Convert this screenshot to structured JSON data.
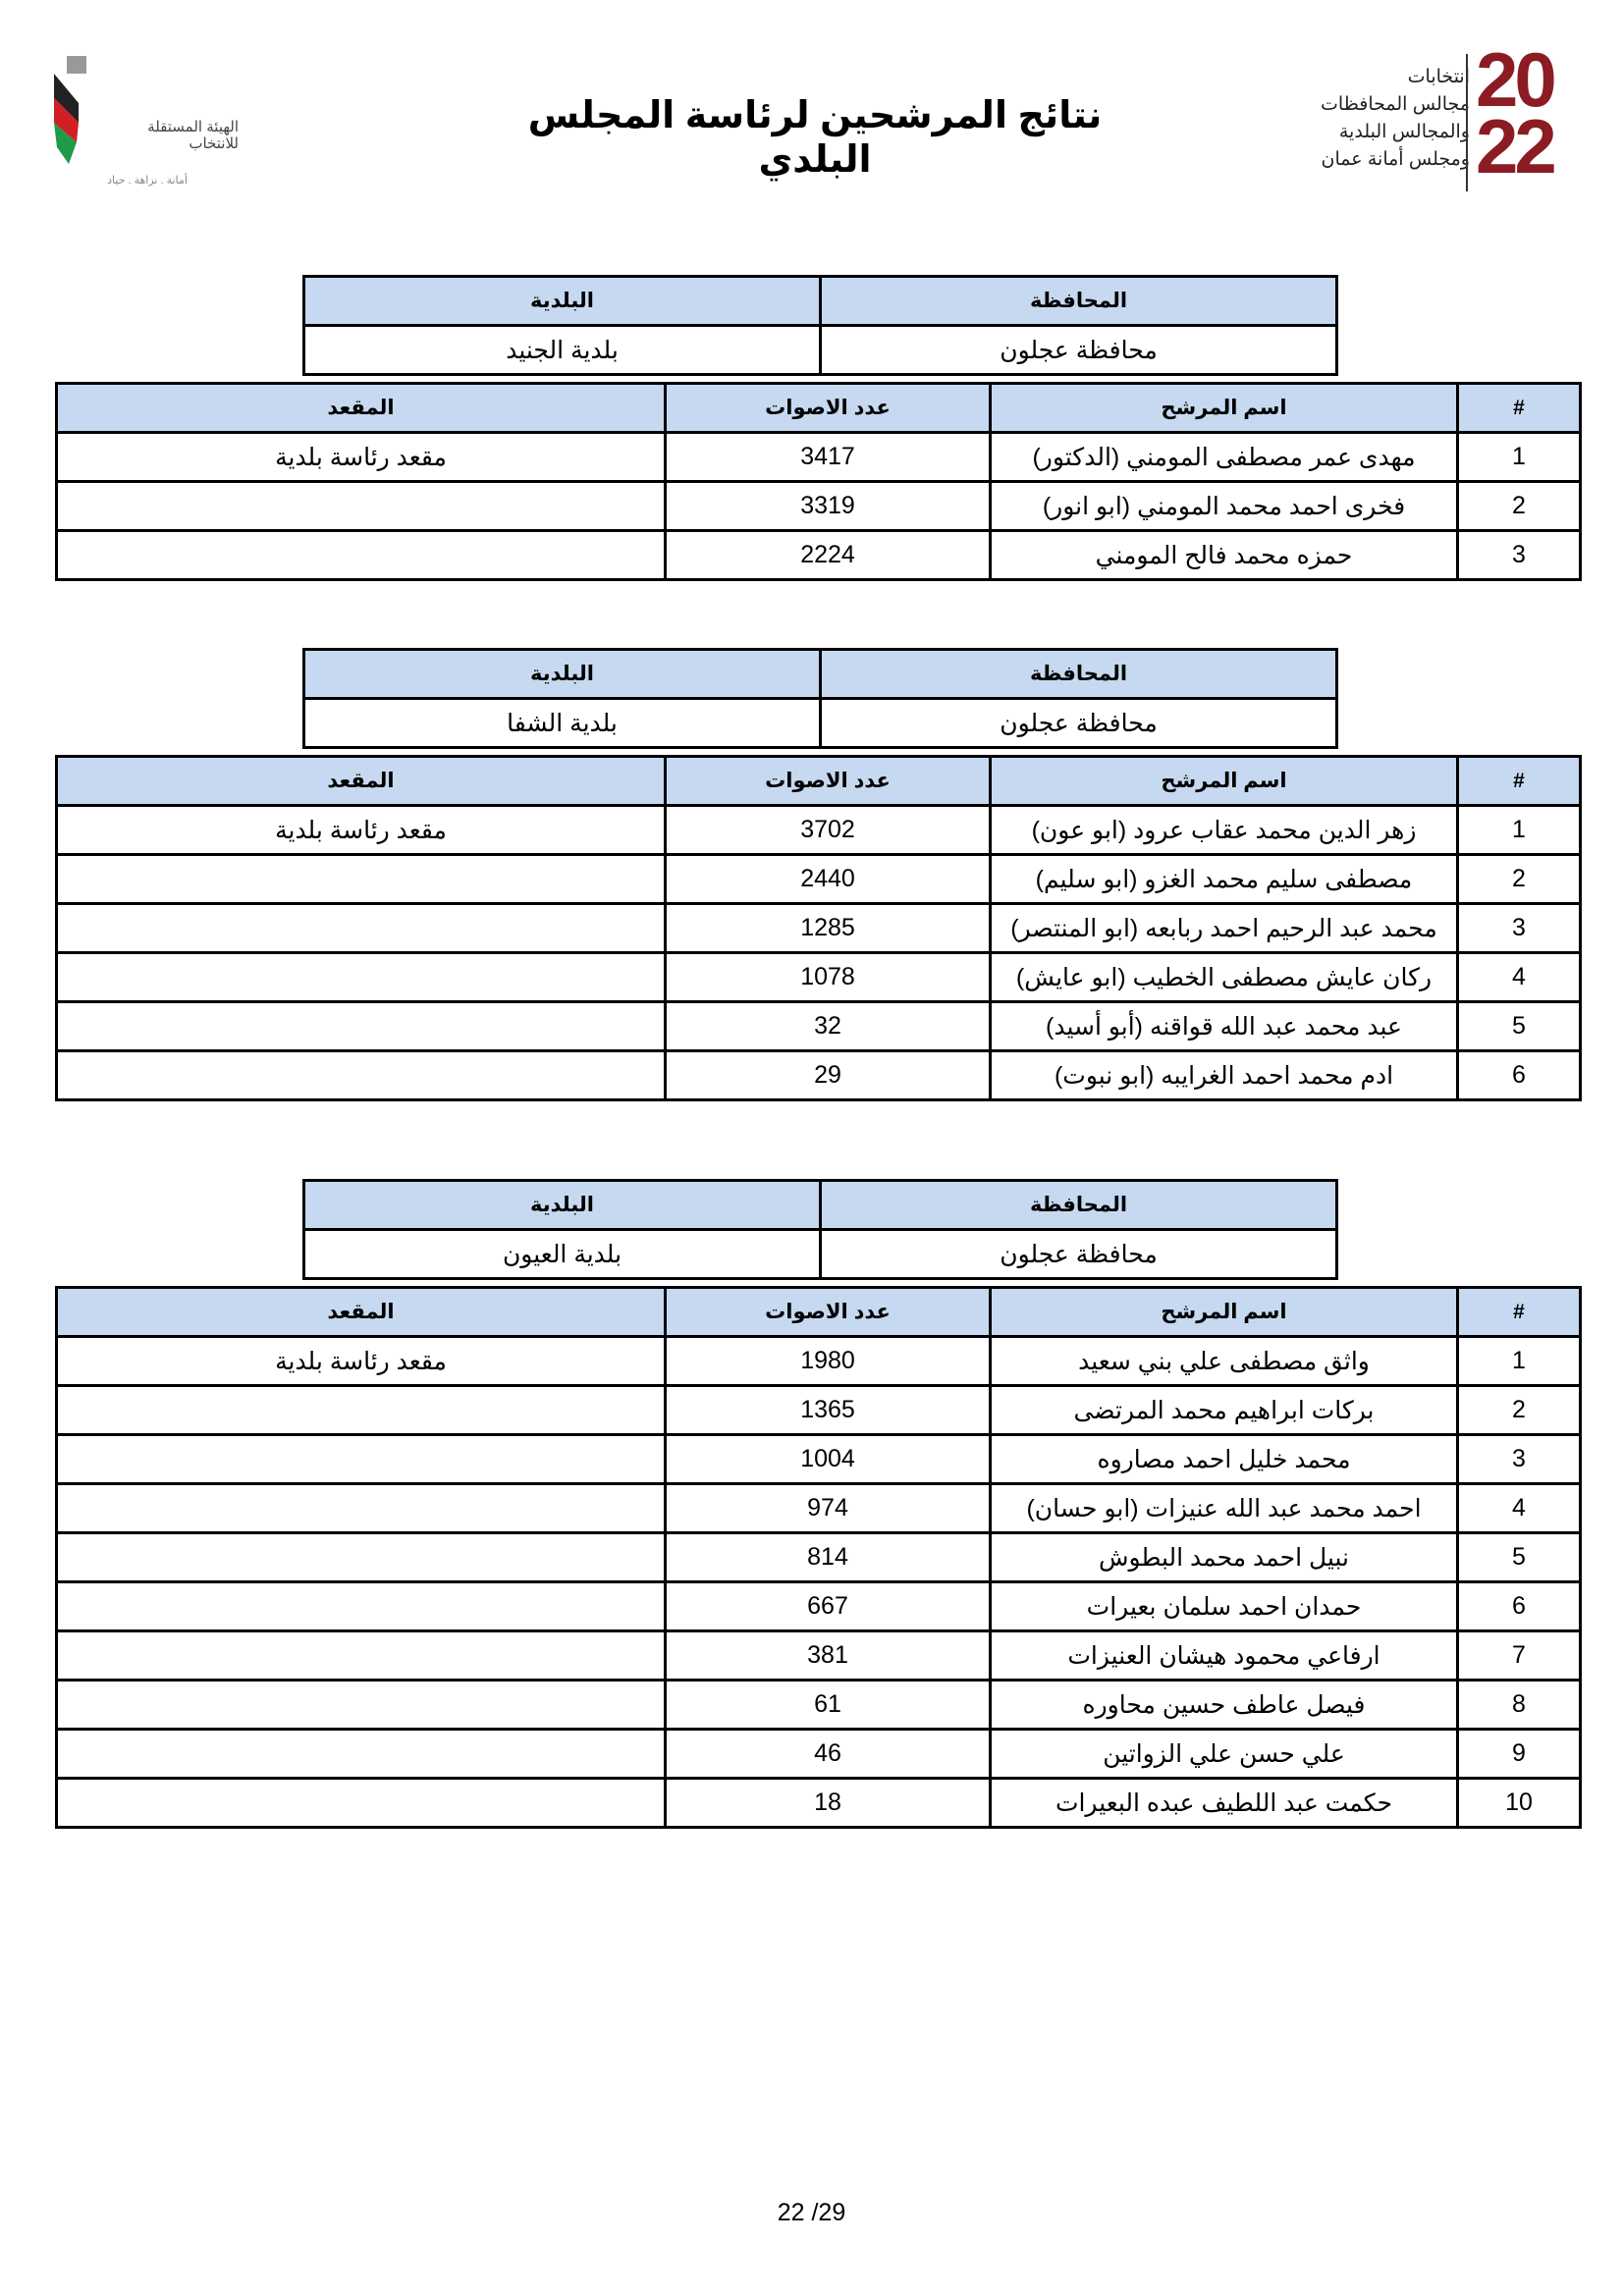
{
  "header": {
    "title": "نتائج المرشحين لرئاسة المجلس البلدي",
    "left_logo": {
      "name": "الهيئة المستقلة للانتخاب",
      "tagline": "أمانة . نزاهة . حياد"
    },
    "right_logo": {
      "lines": [
        "انتخابات",
        "مجالس المحافظات",
        "والمجالس البلدية",
        "ومجلس أمانة عمان"
      ],
      "year": "2022"
    }
  },
  "labels": {
    "governorate": "المحافظة",
    "municipality": "البلدية",
    "index": "#",
    "candidate": "اسم المرشح",
    "votes": "عدد الاصوات",
    "seat": "المقعد"
  },
  "tables": [
    {
      "governorate": "محافظة عجلون",
      "municipality": "بلدية الجنيد",
      "rows": [
        {
          "n": "1",
          "name": "مهدى عمر مصطفى المومني (الدكتور)",
          "votes": "3417",
          "seat": "مقعد رئاسة بلدية"
        },
        {
          "n": "2",
          "name": "فخرى احمد محمد المومني (ابو انور)",
          "votes": "3319",
          "seat": ""
        },
        {
          "n": "3",
          "name": "حمزه محمد فالح المومني",
          "votes": "2224",
          "seat": ""
        }
      ]
    },
    {
      "governorate": "محافظة عجلون",
      "municipality": "بلدية الشفا",
      "rows": [
        {
          "n": "1",
          "name": "زهر الدين محمد عقاب عرود (ابو عون)",
          "votes": "3702",
          "seat": "مقعد رئاسة بلدية"
        },
        {
          "n": "2",
          "name": "مصطفى سليم محمد الغزو (ابو سليم)",
          "votes": "2440",
          "seat": ""
        },
        {
          "n": "3",
          "name": "محمد عبد الرحيم احمد ربابعه (ابو المنتصر)",
          "votes": "1285",
          "seat": ""
        },
        {
          "n": "4",
          "name": "ركان عايش مصطفى الخطيب (ابو عايش)",
          "votes": "1078",
          "seat": ""
        },
        {
          "n": "5",
          "name": "عبد محمد عبد الله قواقنه (أبو أسيد)",
          "votes": "32",
          "seat": ""
        },
        {
          "n": "6",
          "name": "ادم محمد احمد الغرايبه (ابو نبوت)",
          "votes": "29",
          "seat": ""
        }
      ]
    },
    {
      "governorate": "محافظة عجلون",
      "municipality": "بلدية العيون",
      "rows": [
        {
          "n": "1",
          "name": "واثق مصطفى علي بني  سعيد",
          "votes": "1980",
          "seat": "مقعد رئاسة بلدية"
        },
        {
          "n": "2",
          "name": "بركات ابراهيم محمد المرتضى",
          "votes": "1365",
          "seat": ""
        },
        {
          "n": "3",
          "name": "محمد خليل احمد مصاروه",
          "votes": "1004",
          "seat": ""
        },
        {
          "n": "4",
          "name": "احمد محمد عبد  الله عنيزات (ابو حسان)",
          "votes": "974",
          "seat": ""
        },
        {
          "n": "5",
          "name": "نبيل احمد محمد البطوش",
          "votes": "814",
          "seat": ""
        },
        {
          "n": "6",
          "name": "حمدان احمد سلمان بعيرات",
          "votes": "667",
          "seat": ""
        },
        {
          "n": "7",
          "name": "ارفاعي محمود هيشان العنيزات",
          "votes": "381",
          "seat": ""
        },
        {
          "n": "8",
          "name": "فيصل عاطف حسين محاوره",
          "votes": "61",
          "seat": ""
        },
        {
          "n": "9",
          "name": "علي حسن علي الزواتين",
          "votes": "46",
          "seat": ""
        },
        {
          "n": "10",
          "name": "حكمت عبد اللطيف عبده البعيرات",
          "votes": "18",
          "seat": ""
        }
      ]
    }
  ],
  "footer": {
    "page": "22 /29"
  },
  "colors": {
    "header_fill": "#c6d9f1",
    "logo_red": "#8b1c24"
  }
}
